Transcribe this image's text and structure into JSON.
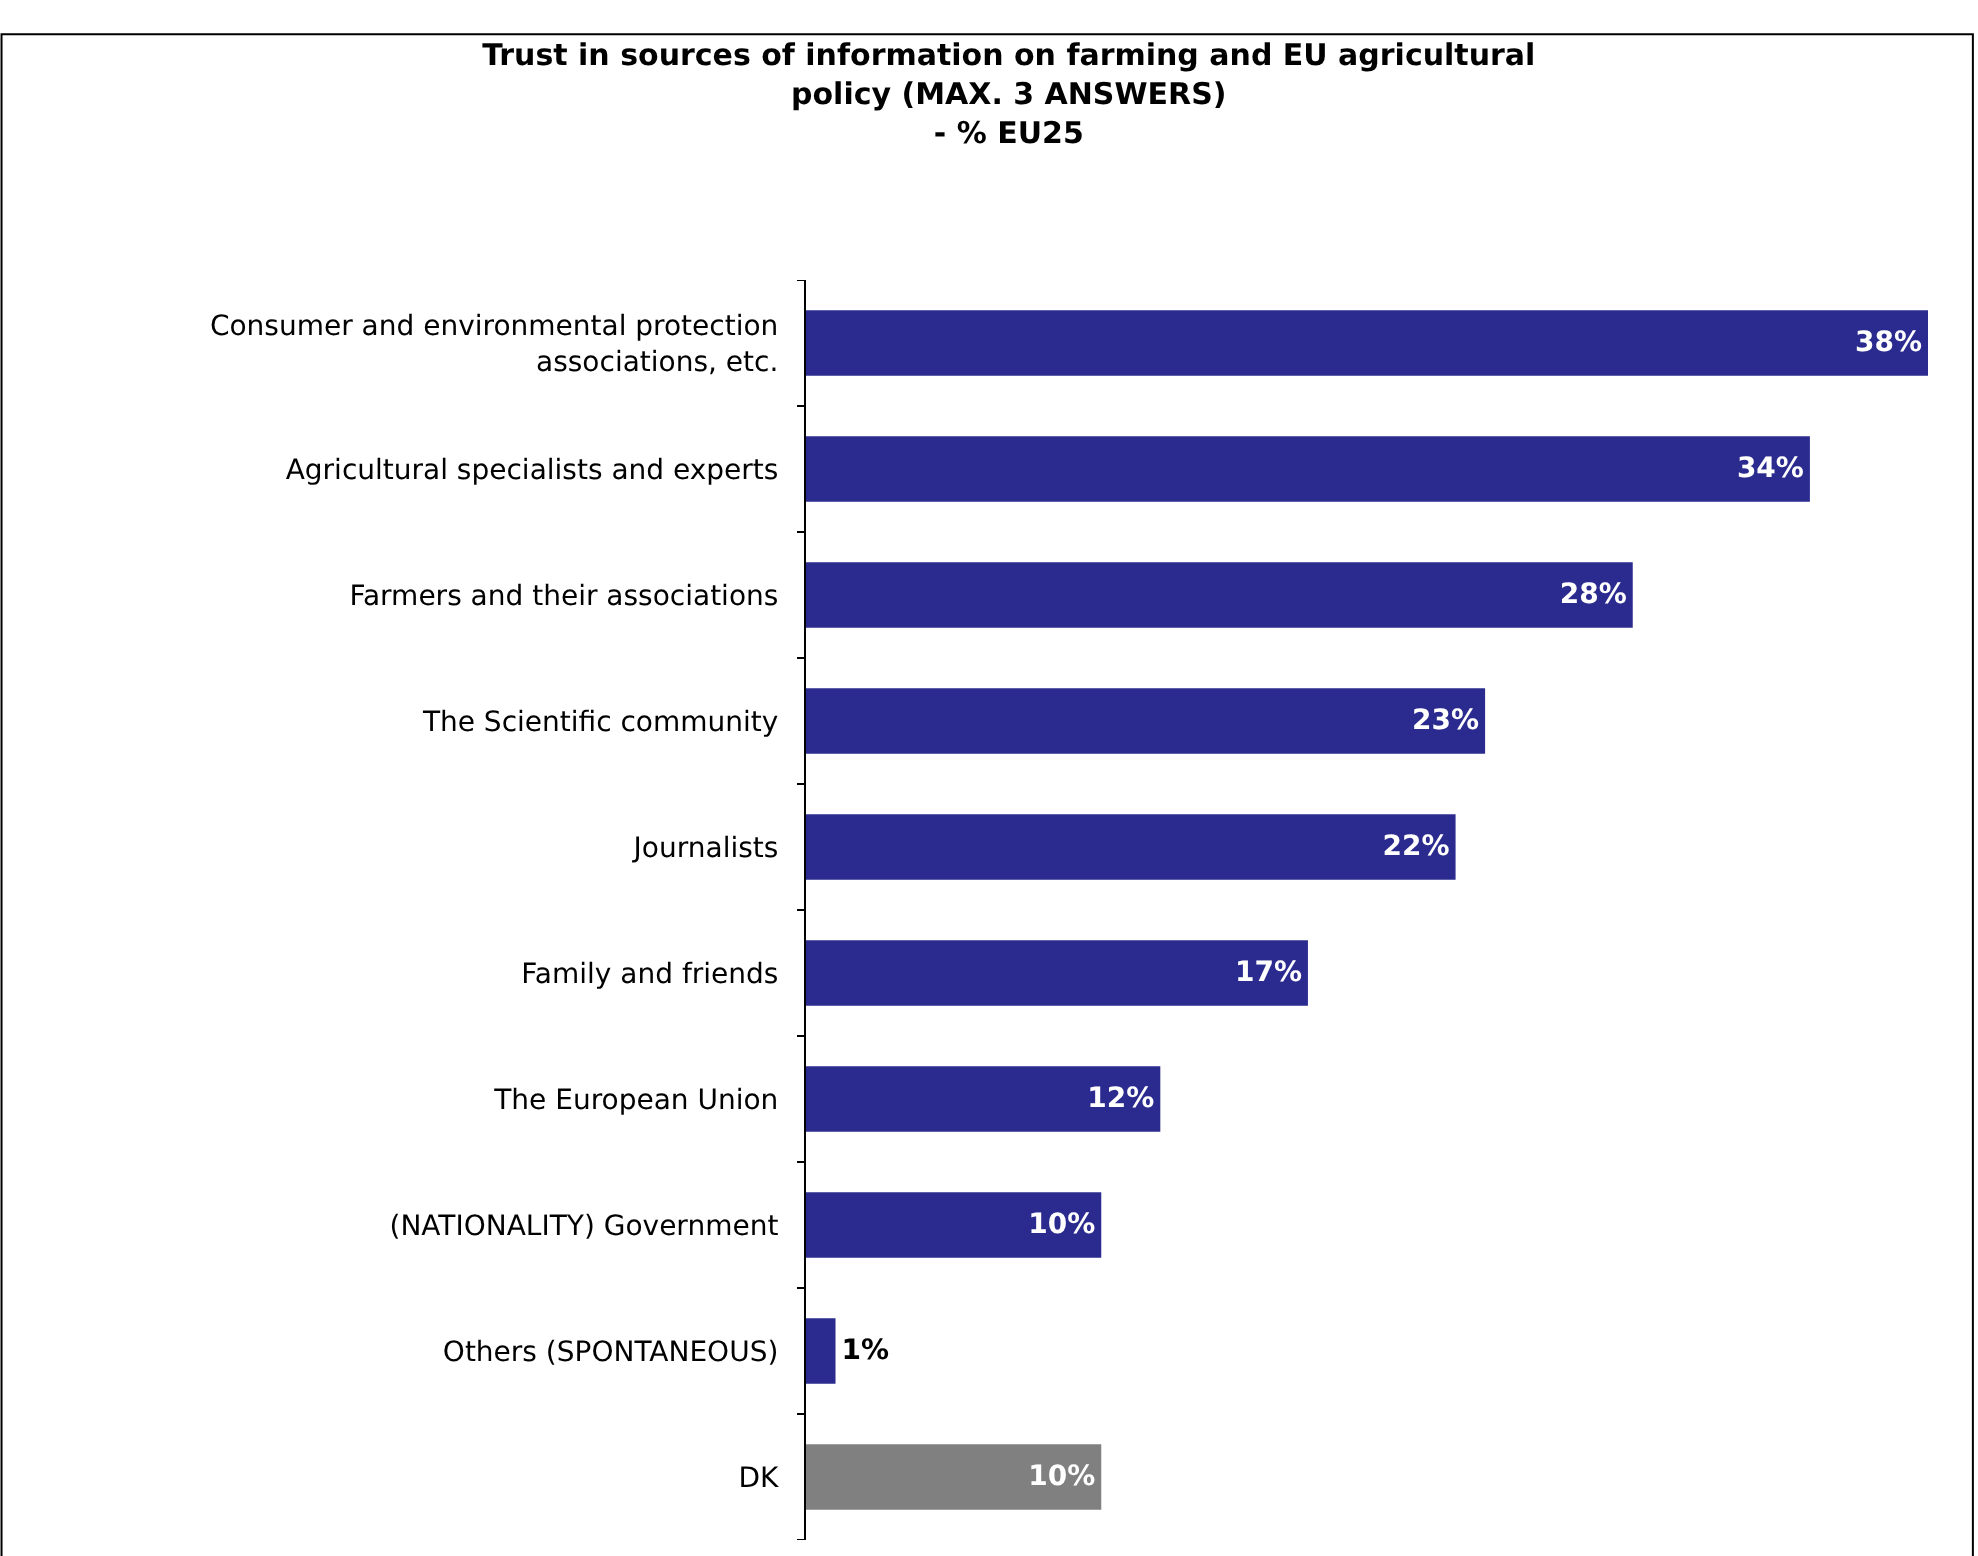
{
  "chart_data": {
    "type": "bar",
    "orientation": "horizontal",
    "title": "Trust in sources of information on farming and EU agricultural\npolicy (MAX. 3 ANSWERS)\n- % EU25",
    "categories": [
      "Consumer and environmental protection associations, etc.",
      "Agricultural specialists and experts",
      "Farmers and their associations",
      "The Scientific community",
      "Journalists",
      "Family and friends",
      "The European Union",
      "(NATIONALITY) Government",
      "Others (SPONTANEOUS)",
      "DK"
    ],
    "values": [
      38,
      34,
      28,
      23,
      22,
      17,
      12,
      10,
      1,
      10
    ],
    "value_labels": [
      "38%",
      "34%",
      "28%",
      "23%",
      "22%",
      "17%",
      "12%",
      "10%",
      "1%",
      "10%"
    ],
    "colors": [
      "#2b2b8f",
      "#2b2b8f",
      "#2b2b8f",
      "#2b2b8f",
      "#2b2b8f",
      "#2b2b8f",
      "#2b2b8f",
      "#2b2b8f",
      "#2b2b8f",
      "#808080"
    ],
    "legend": false
  }
}
